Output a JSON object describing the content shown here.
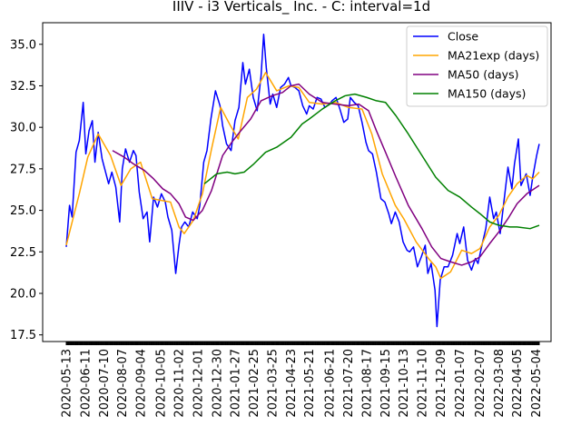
{
  "chart_data": {
    "type": "line",
    "title": "IIIV - i3 Verticals_ Inc. - C: interval=1d",
    "xlabel": "",
    "ylabel": "",
    "x_range": [
      "2020-05-13",
      "2022-05-09"
    ],
    "ylim": [
      17.1,
      36.3
    ],
    "yticks": [
      17.5,
      20.0,
      22.5,
      25.0,
      27.5,
      30.0,
      32.5,
      35.0
    ],
    "ytick_labels": [
      "17.5",
      "20.0",
      "22.5",
      "25.0",
      "27.5",
      "30.0",
      "32.5",
      "35.0"
    ],
    "xticks": [
      "2020-05-13",
      "2020-06-11",
      "2020-07-10",
      "2020-08-07",
      "2020-09-04",
      "2020-10-05",
      "2020-11-02",
      "2020-12-01",
      "2020-12-30",
      "2021-01-27",
      "2021-02-25",
      "2021-03-25",
      "2021-04-23",
      "2021-05-21",
      "2021-06-21",
      "2021-07-20",
      "2021-08-17",
      "2021-09-15",
      "2021-10-13",
      "2021-11-10",
      "2021-12-09",
      "2022-01-07",
      "2022-02-07",
      "2022-03-08",
      "2022-04-05",
      "2022-05-04"
    ],
    "grid": false,
    "legend_position": "top-right",
    "series": [
      {
        "name": "Close",
        "color": "#0000ff",
        "points": [
          [
            "2020-05-13",
            22.8
          ],
          [
            "2020-05-18",
            25.3
          ],
          [
            "2020-05-22",
            24.6
          ],
          [
            "2020-05-28",
            28.5
          ],
          [
            "2020-06-02",
            29.2
          ],
          [
            "2020-06-08",
            31.5
          ],
          [
            "2020-06-12",
            28.4
          ],
          [
            "2020-06-17",
            29.8
          ],
          [
            "2020-06-22",
            30.4
          ],
          [
            "2020-06-26",
            27.9
          ],
          [
            "2020-07-01",
            29.7
          ],
          [
            "2020-07-07",
            28.1
          ],
          [
            "2020-07-13",
            27.2
          ],
          [
            "2020-07-17",
            26.6
          ],
          [
            "2020-07-22",
            27.3
          ],
          [
            "2020-07-28",
            26.4
          ],
          [
            "2020-08-03",
            24.3
          ],
          [
            "2020-08-07",
            27.5
          ],
          [
            "2020-08-12",
            28.7
          ],
          [
            "2020-08-18",
            27.9
          ],
          [
            "2020-08-24",
            28.6
          ],
          [
            "2020-08-28",
            28.3
          ],
          [
            "2020-09-02",
            26.1
          ],
          [
            "2020-09-08",
            24.5
          ],
          [
            "2020-09-14",
            24.9
          ],
          [
            "2020-09-18",
            23.1
          ],
          [
            "2020-09-24",
            25.8
          ],
          [
            "2020-09-30",
            25.2
          ],
          [
            "2020-10-06",
            26.0
          ],
          [
            "2020-10-12",
            25.5
          ],
          [
            "2020-10-16",
            24.6
          ],
          [
            "2020-10-22",
            23.8
          ],
          [
            "2020-10-28",
            21.2
          ],
          [
            "2020-11-02",
            22.9
          ],
          [
            "2020-11-06",
            24.0
          ],
          [
            "2020-11-11",
            24.3
          ],
          [
            "2020-11-17",
            24.0
          ],
          [
            "2020-11-23",
            24.9
          ],
          [
            "2020-11-30",
            24.5
          ],
          [
            "2020-12-04",
            25.3
          ],
          [
            "2020-12-10",
            27.9
          ],
          [
            "2020-12-15",
            28.6
          ],
          [
            "2020-12-21",
            30.5
          ],
          [
            "2020-12-28",
            32.2
          ],
          [
            "2021-01-04",
            31.3
          ],
          [
            "2021-01-08",
            30.1
          ],
          [
            "2021-01-14",
            29.0
          ],
          [
            "2021-01-21",
            28.6
          ],
          [
            "2021-01-27",
            30.4
          ],
          [
            "2021-02-02",
            31.2
          ],
          [
            "2021-02-08",
            33.9
          ],
          [
            "2021-02-12",
            32.6
          ],
          [
            "2021-02-18",
            33.5
          ],
          [
            "2021-02-24",
            31.8
          ],
          [
            "2021-03-02",
            31.0
          ],
          [
            "2021-03-08",
            33.1
          ],
          [
            "2021-03-12",
            35.6
          ],
          [
            "2021-03-16",
            33.6
          ],
          [
            "2021-03-22",
            31.4
          ],
          [
            "2021-03-26",
            32.0
          ],
          [
            "2021-04-01",
            31.2
          ],
          [
            "2021-04-07",
            32.4
          ],
          [
            "2021-04-13",
            32.6
          ],
          [
            "2021-04-19",
            33.0
          ],
          [
            "2021-04-23",
            32.5
          ],
          [
            "2021-04-29",
            32.4
          ],
          [
            "2021-05-05",
            32.2
          ],
          [
            "2021-05-11",
            31.3
          ],
          [
            "2021-05-17",
            30.8
          ],
          [
            "2021-05-21",
            31.3
          ],
          [
            "2021-05-27",
            31.1
          ],
          [
            "2021-06-02",
            31.8
          ],
          [
            "2021-06-08",
            31.7
          ],
          [
            "2021-06-14",
            31.2
          ],
          [
            "2021-06-21",
            31.4
          ],
          [
            "2021-06-25",
            31.6
          ],
          [
            "2021-07-01",
            31.8
          ],
          [
            "2021-07-07",
            31.1
          ],
          [
            "2021-07-13",
            30.3
          ],
          [
            "2021-07-19",
            30.5
          ],
          [
            "2021-07-23",
            31.8
          ],
          [
            "2021-07-29",
            31.5
          ],
          [
            "2021-08-04",
            31.3
          ],
          [
            "2021-08-10",
            30.3
          ],
          [
            "2021-08-16",
            29.1
          ],
          [
            "2021-08-20",
            28.6
          ],
          [
            "2021-08-26",
            28.4
          ],
          [
            "2021-09-01",
            27.3
          ],
          [
            "2021-09-08",
            25.7
          ],
          [
            "2021-09-14",
            25.5
          ],
          [
            "2021-09-20",
            24.8
          ],
          [
            "2021-09-24",
            24.2
          ],
          [
            "2021-09-30",
            24.9
          ],
          [
            "2021-10-06",
            24.3
          ],
          [
            "2021-10-12",
            23.1
          ],
          [
            "2021-10-18",
            22.6
          ],
          [
            "2021-10-22",
            22.5
          ],
          [
            "2021-10-28",
            22.8
          ],
          [
            "2021-11-03",
            21.6
          ],
          [
            "2021-11-09",
            22.2
          ],
          [
            "2021-11-15",
            22.9
          ],
          [
            "2021-11-19",
            21.2
          ],
          [
            "2021-11-24",
            21.8
          ],
          [
            "2021-11-30",
            20.2
          ],
          [
            "2021-12-03",
            18.0
          ],
          [
            "2021-12-08",
            20.8
          ],
          [
            "2021-12-14",
            21.6
          ],
          [
            "2021-12-20",
            21.6
          ],
          [
            "2021-12-27",
            22.3
          ],
          [
            "2022-01-03",
            23.6
          ],
          [
            "2022-01-07",
            23.0
          ],
          [
            "2022-01-13",
            24.0
          ],
          [
            "2022-01-19",
            22.0
          ],
          [
            "2022-01-25",
            21.4
          ],
          [
            "2022-01-31",
            22.1
          ],
          [
            "2022-02-04",
            21.8
          ],
          [
            "2022-02-10",
            22.9
          ],
          [
            "2022-02-16",
            23.9
          ],
          [
            "2022-02-22",
            25.8
          ],
          [
            "2022-02-28",
            24.5
          ],
          [
            "2022-03-04",
            24.9
          ],
          [
            "2022-03-10",
            23.6
          ],
          [
            "2022-03-16",
            25.6
          ],
          [
            "2022-03-22",
            27.6
          ],
          [
            "2022-03-28",
            26.3
          ],
          [
            "2022-04-01",
            27.8
          ],
          [
            "2022-04-07",
            29.3
          ],
          [
            "2022-04-11",
            26.5
          ],
          [
            "2022-04-19",
            27.2
          ],
          [
            "2022-04-25",
            25.9
          ],
          [
            "2022-04-29",
            27.0
          ],
          [
            "2022-05-05",
            28.3
          ],
          [
            "2022-05-09",
            29.0
          ]
        ]
      },
      {
        "name": "MA21exp (days)",
        "color": "#ffa500",
        "points": [
          [
            "2020-05-13",
            22.9
          ],
          [
            "2020-06-02",
            26.0
          ],
          [
            "2020-06-15",
            28.2
          ],
          [
            "2020-07-01",
            29.6
          ],
          [
            "2020-07-20",
            28.3
          ],
          [
            "2020-08-05",
            26.5
          ],
          [
            "2020-08-20",
            27.5
          ],
          [
            "2020-09-04",
            27.9
          ],
          [
            "2020-09-22",
            25.7
          ],
          [
            "2020-10-06",
            25.6
          ],
          [
            "2020-10-20",
            25.5
          ],
          [
            "2020-11-02",
            24.0
          ],
          [
            "2020-11-10",
            23.6
          ],
          [
            "2020-11-24",
            24.4
          ],
          [
            "2020-12-08",
            26.0
          ],
          [
            "2020-12-22",
            28.7
          ],
          [
            "2021-01-05",
            31.2
          ],
          [
            "2021-01-20",
            30.1
          ],
          [
            "2021-02-01",
            29.3
          ],
          [
            "2021-02-15",
            31.8
          ],
          [
            "2021-03-01",
            32.3
          ],
          [
            "2021-03-15",
            33.3
          ],
          [
            "2021-04-01",
            32.2
          ],
          [
            "2021-04-20",
            32.5
          ],
          [
            "2021-05-05",
            32.4
          ],
          [
            "2021-05-21",
            31.5
          ],
          [
            "2021-06-10",
            31.4
          ],
          [
            "2021-06-30",
            31.5
          ],
          [
            "2021-07-20",
            31.2
          ],
          [
            "2021-08-10",
            31.1
          ],
          [
            "2021-08-25",
            29.6
          ],
          [
            "2021-09-10",
            27.2
          ],
          [
            "2021-09-30",
            25.3
          ],
          [
            "2021-10-13",
            24.5
          ],
          [
            "2021-11-01",
            23.1
          ],
          [
            "2021-11-20",
            22.1
          ],
          [
            "2021-12-01",
            21.6
          ],
          [
            "2021-12-09",
            20.9
          ],
          [
            "2021-12-24",
            21.3
          ],
          [
            "2022-01-10",
            22.6
          ],
          [
            "2022-01-25",
            22.4
          ],
          [
            "2022-02-07",
            22.7
          ],
          [
            "2022-02-22",
            24.0
          ],
          [
            "2022-03-08",
            24.7
          ],
          [
            "2022-03-22",
            25.8
          ],
          [
            "2022-04-05",
            26.6
          ],
          [
            "2022-04-20",
            27.1
          ],
          [
            "2022-04-29",
            26.9
          ],
          [
            "2022-05-09",
            27.3
          ]
        ]
      },
      {
        "name": "MA50 (days)",
        "color": "#800080",
        "points": [
          [
            "2020-07-23",
            28.6
          ],
          [
            "2020-08-10",
            28.2
          ],
          [
            "2020-08-24",
            27.8
          ],
          [
            "2020-09-10",
            27.4
          ],
          [
            "2020-09-24",
            26.9
          ],
          [
            "2020-10-08",
            26.3
          ],
          [
            "2020-10-20",
            26.0
          ],
          [
            "2020-11-02",
            25.4
          ],
          [
            "2020-11-12",
            24.6
          ],
          [
            "2020-11-24",
            24.4
          ],
          [
            "2020-12-08",
            25.0
          ],
          [
            "2020-12-22",
            26.2
          ],
          [
            "2021-01-08",
            28.3
          ],
          [
            "2021-01-22",
            29.1
          ],
          [
            "2021-02-05",
            29.8
          ],
          [
            "2021-02-20",
            30.5
          ],
          [
            "2021-03-08",
            31.6
          ],
          [
            "2021-03-25",
            31.9
          ],
          [
            "2021-04-10",
            32.1
          ],
          [
            "2021-04-23",
            32.5
          ],
          [
            "2021-05-05",
            32.6
          ],
          [
            "2021-05-21",
            32.0
          ],
          [
            "2021-06-10",
            31.5
          ],
          [
            "2021-06-30",
            31.4
          ],
          [
            "2021-07-20",
            31.3
          ],
          [
            "2021-08-05",
            31.4
          ],
          [
            "2021-08-20",
            31.0
          ],
          [
            "2021-09-01",
            29.8
          ],
          [
            "2021-09-15",
            28.5
          ],
          [
            "2021-10-01",
            27.0
          ],
          [
            "2021-10-20",
            25.3
          ],
          [
            "2021-11-10",
            23.9
          ],
          [
            "2021-11-25",
            22.8
          ],
          [
            "2021-12-09",
            22.1
          ],
          [
            "2021-12-24",
            21.9
          ],
          [
            "2022-01-10",
            21.7
          ],
          [
            "2022-01-25",
            21.9
          ],
          [
            "2022-02-07",
            22.2
          ],
          [
            "2022-02-22",
            23.0
          ],
          [
            "2022-03-08",
            23.7
          ],
          [
            "2022-03-22",
            24.5
          ],
          [
            "2022-04-05",
            25.4
          ],
          [
            "2022-04-20",
            26.0
          ],
          [
            "2022-05-09",
            26.5
          ]
        ]
      },
      {
        "name": "MA150 (days)",
        "color": "#008000",
        "points": [
          [
            "2020-12-11",
            26.6
          ],
          [
            "2020-12-30",
            27.2
          ],
          [
            "2021-01-15",
            27.3
          ],
          [
            "2021-01-27",
            27.2
          ],
          [
            "2021-02-10",
            27.3
          ],
          [
            "2021-02-25",
            27.8
          ],
          [
            "2021-03-15",
            28.5
          ],
          [
            "2021-04-01",
            28.8
          ],
          [
            "2021-04-23",
            29.4
          ],
          [
            "2021-05-10",
            30.2
          ],
          [
            "2021-05-21",
            30.5
          ],
          [
            "2021-06-10",
            31.1
          ],
          [
            "2021-06-30",
            31.6
          ],
          [
            "2021-07-15",
            31.9
          ],
          [
            "2021-07-30",
            32.0
          ],
          [
            "2021-08-17",
            31.8
          ],
          [
            "2021-09-01",
            31.6
          ],
          [
            "2021-09-15",
            31.5
          ],
          [
            "2021-10-01",
            30.7
          ],
          [
            "2021-10-20",
            29.6
          ],
          [
            "2021-11-10",
            28.3
          ],
          [
            "2021-12-01",
            27.0
          ],
          [
            "2021-12-20",
            26.2
          ],
          [
            "2022-01-07",
            25.8
          ],
          [
            "2022-01-25",
            25.2
          ],
          [
            "2022-02-07",
            24.8
          ],
          [
            "2022-02-22",
            24.3
          ],
          [
            "2022-03-08",
            24.1
          ],
          [
            "2022-03-25",
            24.0
          ],
          [
            "2022-04-05",
            24.0
          ],
          [
            "2022-04-25",
            23.9
          ],
          [
            "2022-05-09",
            24.1
          ]
        ]
      }
    ]
  }
}
